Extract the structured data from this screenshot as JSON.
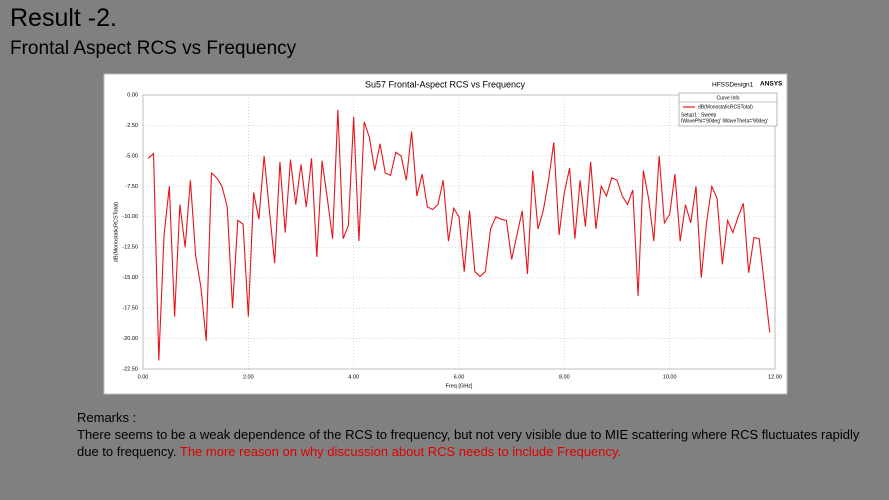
{
  "slide": {
    "title": "Result -2.",
    "subtitle": "Frontal Aspect RCS vs Frequency"
  },
  "remarks": {
    "label": "Remarks :",
    "text": "There seems to be a weak dependence of the RCS to frequency, but not very visible due to MIE scattering where RCS fluctuates rapidly due to frequency.",
    "highlight": "The more reason on why discussion about RCS needs to include Frequency."
  },
  "chart_data": {
    "type": "line",
    "title": "Su57 Frontal-Aspect RCS vs Frequency",
    "design_name": "HFSSDesign1",
    "brand": "ANSYS",
    "xlabel": "Freq [GHz]",
    "ylabel": "dB(MonostaticRCSTotal)",
    "legend_title": "Curve Info",
    "legend_notes": [
      "Setup1 : Sweep",
      "IWavePhi='90deg' IWaveTheta='90deg'"
    ],
    "legend_position": "upper right",
    "grid": true,
    "xlim": [
      0,
      12
    ],
    "ylim": [
      -22.5,
      0
    ],
    "xticks": [
      {
        "value": 0,
        "label": "0.00"
      },
      {
        "value": 2,
        "label": "2.00"
      },
      {
        "value": 4,
        "label": "4.00"
      },
      {
        "value": 6,
        "label": "6.00"
      },
      {
        "value": 8,
        "label": "8.00"
      },
      {
        "value": 10,
        "label": "10.00"
      },
      {
        "value": 12,
        "label": "12.00"
      }
    ],
    "yticks": [
      {
        "value": 0,
        "label": "0.00"
      },
      {
        "value": -2.5,
        "label": "-2.50"
      },
      {
        "value": -5,
        "label": "-5.00"
      },
      {
        "value": -7.5,
        "label": "-7.50"
      },
      {
        "value": -10,
        "label": "-10.00"
      },
      {
        "value": -12.5,
        "label": "-12.50"
      },
      {
        "value": -15,
        "label": "-15.00"
      },
      {
        "value": -17.5,
        "label": "-17.50"
      },
      {
        "value": -20,
        "label": "-20.00"
      },
      {
        "value": -22.5,
        "label": "-22.50"
      }
    ],
    "x": [
      0.1,
      0.2,
      0.3,
      0.4,
      0.5,
      0.6,
      0.7,
      0.8,
      0.9,
      1.0,
      1.1,
      1.2,
      1.3,
      1.4,
      1.5,
      1.6,
      1.7,
      1.8,
      1.9,
      2.0,
      2.1,
      2.2,
      2.3,
      2.4,
      2.5,
      2.6,
      2.7,
      2.8,
      2.9,
      3.0,
      3.1,
      3.2,
      3.3,
      3.4,
      3.5,
      3.6,
      3.7,
      3.8,
      3.9,
      4.0,
      4.1,
      4.2,
      4.3,
      4.4,
      4.5,
      4.6,
      4.7,
      4.8,
      4.9,
      5.0,
      5.1,
      5.2,
      5.3,
      5.4,
      5.5,
      5.6,
      5.7,
      5.8,
      5.9,
      6.0,
      6.1,
      6.2,
      6.3,
      6.4,
      6.5,
      6.6,
      6.7,
      6.8,
      6.9,
      7.0,
      7.1,
      7.2,
      7.3,
      7.4,
      7.5,
      7.6,
      7.7,
      7.8,
      7.9,
      8.0,
      8.1,
      8.2,
      8.3,
      8.4,
      8.5,
      8.6,
      8.7,
      8.8,
      8.9,
      9.0,
      9.1,
      9.2,
      9.3,
      9.4,
      9.5,
      9.6,
      9.7,
      9.8,
      9.9,
      10.0,
      10.1,
      10.2,
      10.3,
      10.4,
      10.5,
      10.6,
      10.7,
      10.8,
      10.9,
      11.0,
      11.1,
      11.2,
      11.3,
      11.4,
      11.5,
      11.6,
      11.7,
      11.9
    ],
    "series": [
      {
        "name": "dB(MonostaticRCSTotal)",
        "color": "#e8141c",
        "values": [
          -5.2,
          -4.8,
          -21.8,
          -11.5,
          -7.5,
          -18.2,
          -9.0,
          -12.5,
          -7.0,
          -13.2,
          -15.8,
          -20.2,
          -6.4,
          -6.8,
          -7.5,
          -9.2,
          -17.5,
          -10.3,
          -10.6,
          -18.2,
          -8.0,
          -10.2,
          -5.0,
          -9.5,
          -13.8,
          -5.5,
          -11.3,
          -5.3,
          -9.0,
          -5.7,
          -9.2,
          -5.2,
          -13.3,
          -5.4,
          -8.5,
          -11.8,
          -1.2,
          -11.8,
          -10.7,
          -1.8,
          -12.0,
          -2.2,
          -3.5,
          -6.2,
          -4.0,
          -6.4,
          -6.6,
          -4.7,
          -5.0,
          -7.0,
          -3.0,
          -8.3,
          -6.5,
          -9.2,
          -9.4,
          -9.0,
          -7.0,
          -12.0,
          -9.3,
          -10.0,
          -14.5,
          -9.5,
          -14.5,
          -14.9,
          -14.5,
          -11.0,
          -10.0,
          -10.2,
          -10.3,
          -13.5,
          -11.5,
          -9.5,
          -14.7,
          -6.2,
          -11.0,
          -9.5,
          -7.0,
          -3.9,
          -11.5,
          -8.0,
          -6.0,
          -11.8,
          -7.0,
          -10.8,
          -5.5,
          -11.0,
          -7.5,
          -8.3,
          -6.8,
          -7.0,
          -8.3,
          -9.0,
          -7.8,
          -16.5,
          -6.2,
          -8.5,
          -12.0,
          -5.0,
          -10.5,
          -9.8,
          -6.5,
          -12.0,
          -9.0,
          -10.5,
          -7.5,
          -15.0,
          -10.5,
          -7.5,
          -8.5,
          -13.9,
          -10.3,
          -11.3,
          -10.0,
          -8.9,
          -14.6,
          -11.7,
          -11.8,
          -19.5
        ]
      }
    ]
  }
}
